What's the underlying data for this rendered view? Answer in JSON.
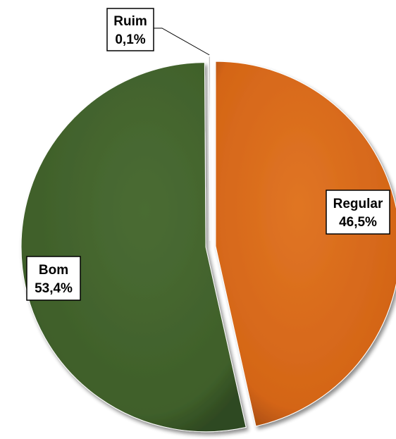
{
  "chart_data": {
    "type": "pie",
    "title": "",
    "categories": [
      "Regular",
      "Bom",
      "Ruim"
    ],
    "values": [
      46.5,
      53.4,
      0.1
    ],
    "value_labels": [
      "46,5%",
      "53,4%",
      "0,1%"
    ],
    "colors": [
      "#D46517",
      "#3F5F2A",
      "#7f7f7f"
    ],
    "start": "12 o'clock, clockwise",
    "legend": "none (data labels with callout boxes)"
  }
}
